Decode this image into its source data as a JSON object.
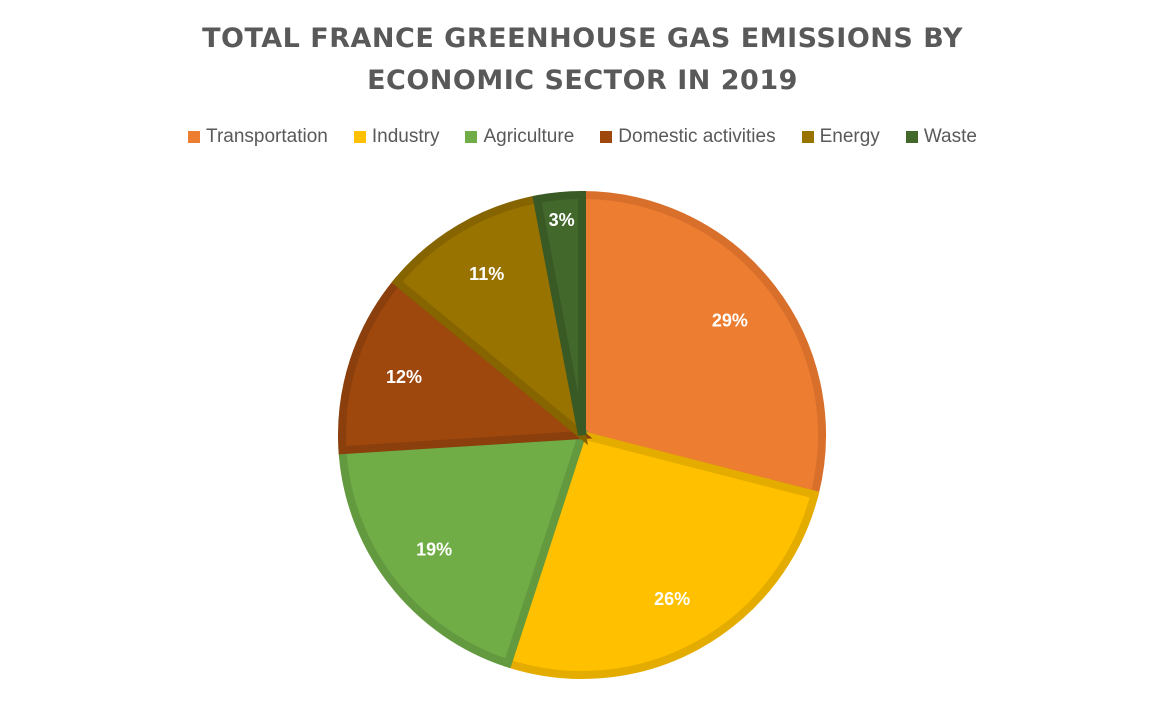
{
  "chart_data": {
    "type": "pie",
    "title": "TOTAL FRANCE GREENHOUSE GAS EMISSIONS BY ECONOMIC SECTOR IN 2019",
    "title_lines": [
      "TOTAL FRANCE GREENHOUSE GAS EMISSIONS BY",
      "ECONOMIC SECTOR IN 2019"
    ],
    "legend_position": "top",
    "categories": [
      "Transportation",
      "Industry",
      "Agriculture",
      "Domestic activities",
      "Energy",
      "Waste"
    ],
    "values": [
      29,
      26,
      19,
      12,
      11,
      3
    ],
    "labels": [
      "29%",
      "26%",
      "19%",
      "12%",
      "11%",
      "3%"
    ],
    "colors": [
      "#ED7D31",
      "#FFC000",
      "#70AD47",
      "#9E480E",
      "#997300",
      "#43682B"
    ],
    "border_colors": [
      "#D86F2B",
      "#E5AC00",
      "#63993F",
      "#8B3F0C",
      "#866500",
      "#3A5A25"
    ]
  }
}
